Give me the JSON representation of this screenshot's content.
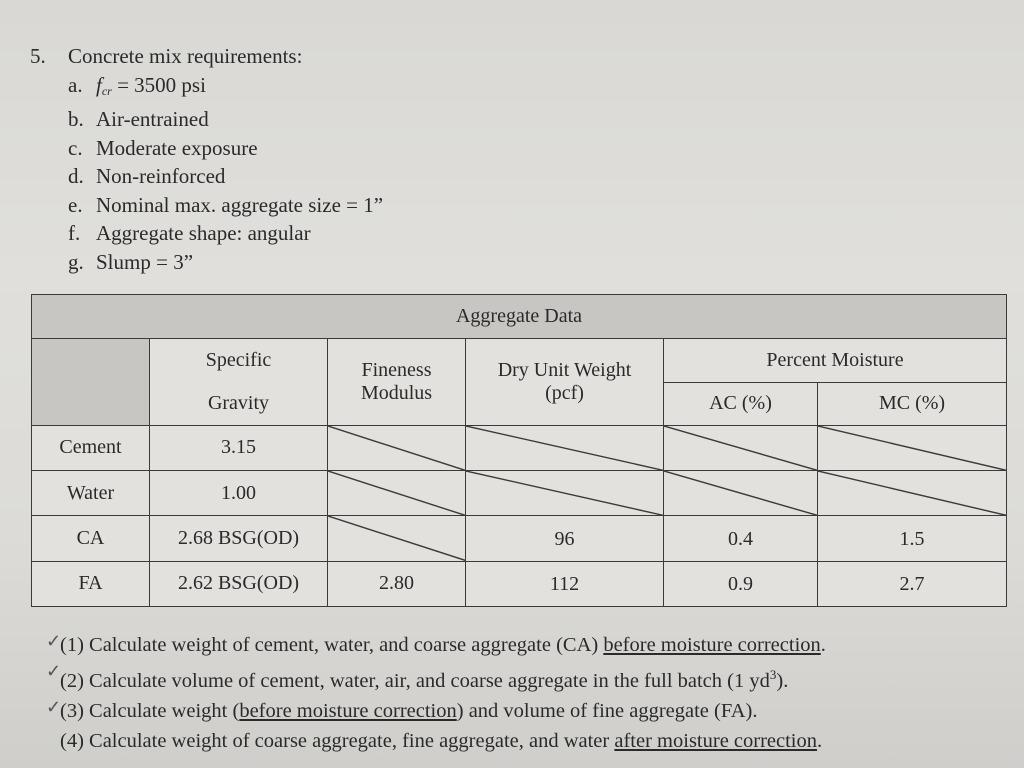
{
  "problem": {
    "number": "5.",
    "title": "Concrete mix requirements:",
    "items": [
      {
        "letter": "a.",
        "text_prefix": "f",
        "text_sub": "cr",
        "text": " = 3500 psi"
      },
      {
        "letter": "b.",
        "text": "Air-entrained"
      },
      {
        "letter": "c.",
        "text": "Moderate exposure"
      },
      {
        "letter": "d.",
        "text": "Non-reinforced"
      },
      {
        "letter": "e.",
        "text": "Nominal max. aggregate size = 1”"
      },
      {
        "letter": "f.",
        "text": "Aggregate shape: angular"
      },
      {
        "letter": "g.",
        "text": "Slump = 3”"
      }
    ]
  },
  "table": {
    "title": "Aggregate Data",
    "headers": {
      "specific_gravity": "Specific",
      "specific_gravity_2": "Gravity",
      "fineness": "Fineness",
      "fineness_2": "Modulus",
      "dry_unit_weight": "Dry Unit Weight",
      "dry_unit_weight_2": "(pcf)",
      "percent_moisture": "Percent Moisture",
      "ac": "AC (%)",
      "mc": "MC (%)"
    },
    "rows": [
      {
        "label": "Cement",
        "sg": "3.15",
        "fm": "",
        "duw": "",
        "ac": "",
        "mc": ""
      },
      {
        "label": "Water",
        "sg": "1.00",
        "fm": "",
        "duw": "",
        "ac": "",
        "mc": ""
      },
      {
        "label": "CA",
        "sg": "2.68 BSG(OD)",
        "fm": "",
        "duw": "96",
        "ac": "0.4",
        "mc": "1.5"
      },
      {
        "label": "FA",
        "sg": "2.62 BSG(OD)",
        "fm": "2.80",
        "duw": "112",
        "ac": "0.9",
        "mc": "2.7"
      }
    ]
  },
  "questions": [
    {
      "checked": true,
      "pre": "(1) Calculate weight of cement, water, and coarse aggregate (CA) ",
      "u": "before moisture correction",
      "post": "."
    },
    {
      "checked": true,
      "pre": "(2) Calculate volume of cement, water, air, and coarse aggregate in the full batch (1 yd",
      "sup": "3",
      "post": ")."
    },
    {
      "checked": true,
      "pre": "(3) Calculate weight (",
      "u": "before moisture correction",
      "post": ") and volume of fine aggregate (FA)."
    },
    {
      "checked": false,
      "pre": "(4) Calculate weight of coarse aggregate, fine aggregate, and water ",
      "u": "after moisture correction",
      "post": "."
    }
  ],
  "check_glyph": "✓"
}
